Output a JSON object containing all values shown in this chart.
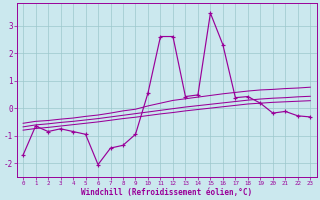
{
  "xlabel": "Windchill (Refroidissement éolien,°C)",
  "x": [
    0,
    1,
    2,
    3,
    4,
    5,
    6,
    7,
    8,
    9,
    10,
    11,
    12,
    13,
    14,
    15,
    16,
    17,
    18,
    19,
    20,
    21,
    22,
    23
  ],
  "main_y": [
    -1.7,
    -0.65,
    -0.85,
    -0.75,
    -0.85,
    -0.95,
    -2.05,
    -1.45,
    -1.35,
    -0.95,
    0.55,
    2.6,
    2.6,
    0.42,
    0.48,
    3.45,
    2.3,
    0.38,
    0.42,
    0.18,
    -0.18,
    -0.12,
    -0.28,
    -0.32
  ],
  "env1_y": [
    -0.55,
    -0.48,
    -0.45,
    -0.4,
    -0.36,
    -0.3,
    -0.25,
    -0.18,
    -0.1,
    -0.04,
    0.08,
    0.18,
    0.28,
    0.34,
    0.4,
    0.46,
    0.52,
    0.57,
    0.62,
    0.66,
    0.68,
    0.71,
    0.73,
    0.76
  ],
  "env2_y": [
    -0.68,
    -0.61,
    -0.57,
    -0.52,
    -0.48,
    -0.43,
    -0.38,
    -0.32,
    -0.26,
    -0.2,
    -0.14,
    -0.08,
    -0.02,
    0.04,
    0.09,
    0.14,
    0.19,
    0.24,
    0.29,
    0.33,
    0.36,
    0.38,
    0.41,
    0.43
  ],
  "env3_y": [
    -0.8,
    -0.74,
    -0.7,
    -0.65,
    -0.6,
    -0.55,
    -0.5,
    -0.44,
    -0.38,
    -0.33,
    -0.27,
    -0.21,
    -0.16,
    -0.1,
    -0.05,
    0.0,
    0.05,
    0.1,
    0.15,
    0.18,
    0.21,
    0.23,
    0.25,
    0.27
  ],
  "line_color": "#990099",
  "bg_color": "#cbe8ee",
  "grid_color": "#9cc8cc",
  "ylim": [
    -2.5,
    3.8
  ],
  "xlim": [
    -0.5,
    23.5
  ],
  "yticks": [
    -2,
    -1,
    0,
    1,
    2,
    3
  ],
  "xticks": [
    0,
    1,
    2,
    3,
    4,
    5,
    6,
    7,
    8,
    9,
    10,
    11,
    12,
    13,
    14,
    15,
    16,
    17,
    18,
    19,
    20,
    21,
    22,
    23
  ]
}
